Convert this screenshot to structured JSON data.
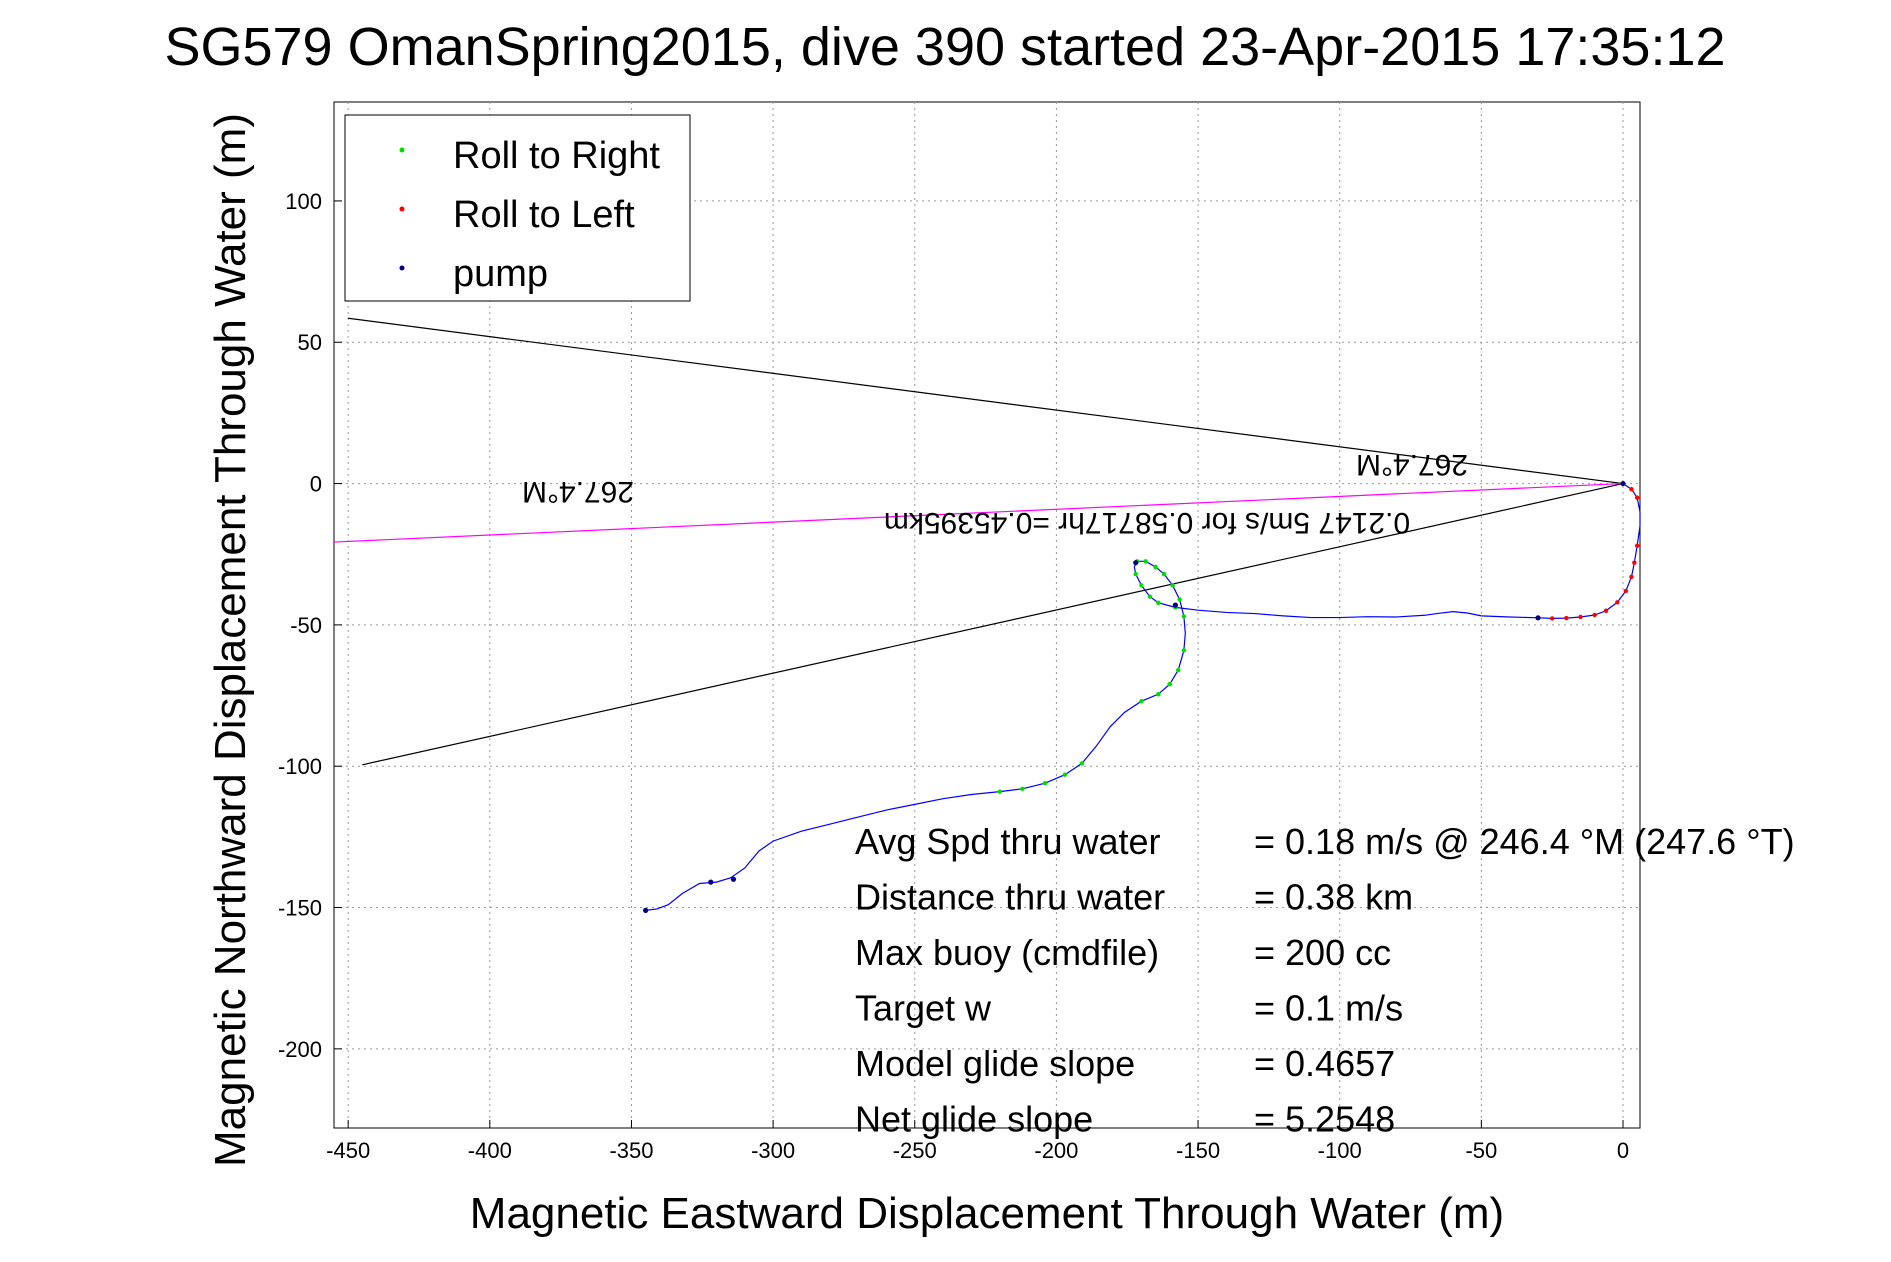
{
  "chart_data": {
    "type": "line",
    "title": "SG579 OmanSpring2015, dive 390 started 23-Apr-2015 17:35:12",
    "xlabel": "Magnetic Eastward Displacement Through Water (m)",
    "ylabel": "Magnetic Northward Displacement Through Water (m)",
    "xlim": [
      -455,
      6
    ],
    "ylim": [
      -228,
      135
    ],
    "xticks": [
      -450,
      -400,
      -350,
      -300,
      -250,
      -200,
      -150,
      -100,
      -50,
      0
    ],
    "yticks": [
      100,
      50,
      0,
      -50,
      -100,
      -150,
      -200
    ],
    "grid": true,
    "legend": {
      "placement": "top-left",
      "entries": [
        {
          "label": "Roll to Right",
          "color": "#00dd00"
        },
        {
          "label": "Roll to Left",
          "color": "#ff0000"
        },
        {
          "label": "pump",
          "color": "#000080"
        }
      ]
    },
    "track": {
      "color": "#0000ff",
      "points": [
        [
          0,
          0
        ],
        [
          3,
          -2
        ],
        [
          5,
          -5
        ],
        [
          6,
          -10
        ],
        [
          6,
          -15
        ],
        [
          5,
          -22
        ],
        [
          4,
          -28
        ],
        [
          3,
          -33
        ],
        [
          1,
          -38
        ],
        [
          -2,
          -42
        ],
        [
          -6,
          -45
        ],
        [
          -10,
          -46.5
        ],
        [
          -15,
          -47.2
        ],
        [
          -20,
          -47.6
        ],
        [
          -25,
          -47.7
        ],
        [
          -30,
          -47.5
        ],
        [
          -40,
          -47.2
        ],
        [
          -50,
          -46.8
        ],
        [
          -55,
          -45.8
        ],
        [
          -60,
          -45.3
        ],
        [
          -65,
          -45.9
        ],
        [
          -70,
          -46.6
        ],
        [
          -80,
          -47.2
        ],
        [
          -90,
          -47.1
        ],
        [
          -100,
          -47.4
        ],
        [
          -110,
          -47.4
        ],
        [
          -120,
          -46.8
        ],
        [
          -130,
          -46.0
        ],
        [
          -140,
          -45.6
        ],
        [
          -150,
          -44.8
        ],
        [
          -158,
          -43.8
        ],
        [
          -164,
          -42.2
        ],
        [
          -167,
          -40.0
        ],
        [
          -170,
          -36.0
        ],
        [
          -172,
          -32.0
        ],
        [
          -172.5,
          -29.5
        ],
        [
          -171.5,
          -27.5
        ],
        [
          -168.5,
          -27.5
        ],
        [
          -165,
          -29.5
        ],
        [
          -162,
          -32.0
        ],
        [
          -159,
          -36.0
        ],
        [
          -156.5,
          -41.0
        ],
        [
          -155,
          -47.0
        ],
        [
          -154.5,
          -53.0
        ],
        [
          -155,
          -59.0
        ],
        [
          -157,
          -66.0
        ],
        [
          -160,
          -71.0
        ],
        [
          -164,
          -74.5
        ],
        [
          -170,
          -77.0
        ],
        [
          -176,
          -81.0
        ],
        [
          -181,
          -86.0
        ],
        [
          -186,
          -93.0
        ],
        [
          -191,
          -99.0
        ],
        [
          -197,
          -103.0
        ],
        [
          -204,
          -106.0
        ],
        [
          -212,
          -108.0
        ],
        [
          -220,
          -109.0
        ],
        [
          -230,
          -110.0
        ],
        [
          -240,
          -111.5
        ],
        [
          -250,
          -113.5
        ],
        [
          -260,
          -115.5
        ],
        [
          -270,
          -118.0
        ],
        [
          -280,
          -120.5
        ],
        [
          -290,
          -123.0
        ],
        [
          -300,
          -126.5
        ],
        [
          -305,
          -130.0
        ],
        [
          -310,
          -136.0
        ],
        [
          -315,
          -139.5
        ],
        [
          -320,
          -141.0
        ],
        [
          -326,
          -141.5
        ],
        [
          -332,
          -145.0
        ],
        [
          -337,
          -149.0
        ],
        [
          -341,
          -150.5
        ],
        [
          -345,
          -151.0
        ]
      ],
      "roll_right_segments": [
        [
          -220,
          -200
        ],
        [
          -198,
          -191
        ],
        [
          -172,
          -155
        ],
        [
          -158,
          -166
        ]
      ],
      "roll_left_segments": [
        [
          5,
          0
        ],
        [
          0,
          -30
        ]
      ],
      "pump_points": [
        [
          -345,
          -151
        ],
        [
          -322,
          -141
        ],
        [
          -314,
          -140
        ],
        [
          -172,
          -28
        ],
        [
          -158,
          -43
        ],
        [
          -30,
          -47.5
        ],
        [
          0,
          0
        ]
      ]
    },
    "reference_lines": [
      {
        "name": "heading-line-upper",
        "color": "#000000",
        "points": [
          [
            -450,
            58.5
          ],
          [
            0,
            0
          ]
        ]
      },
      {
        "name": "heading-line-lower",
        "color": "#000000",
        "points": [
          [
            -445,
            -99.5
          ],
          [
            0,
            0
          ]
        ]
      },
      {
        "name": "current-heading-line",
        "color": "#ff00ff",
        "points": [
          [
            -455,
            -20.7
          ],
          [
            0,
            0
          ]
        ]
      }
    ],
    "annotations": {
      "heading_left": "267.4°M",
      "heading_right": "267.4°M",
      "speed_line": "0.2147 5m/s for 0.58717hr =0.45395km"
    },
    "stats": [
      {
        "label": "Avg Spd thru water",
        "value": "=  0.18 m/s @ 246.4  °M (247.6 °T)"
      },
      {
        "label": "Distance thru water",
        "value": "=  0.38 km"
      },
      {
        "label": "Max buoy (cmdfile)",
        "value": "= 200 cc"
      },
      {
        "label": "Target w",
        "value": "= 0.1 m/s"
      },
      {
        "label": "Model glide slope",
        "value": "= 0.4657"
      },
      {
        "label": "Net glide slope",
        "value": "= 5.2548"
      }
    ]
  }
}
